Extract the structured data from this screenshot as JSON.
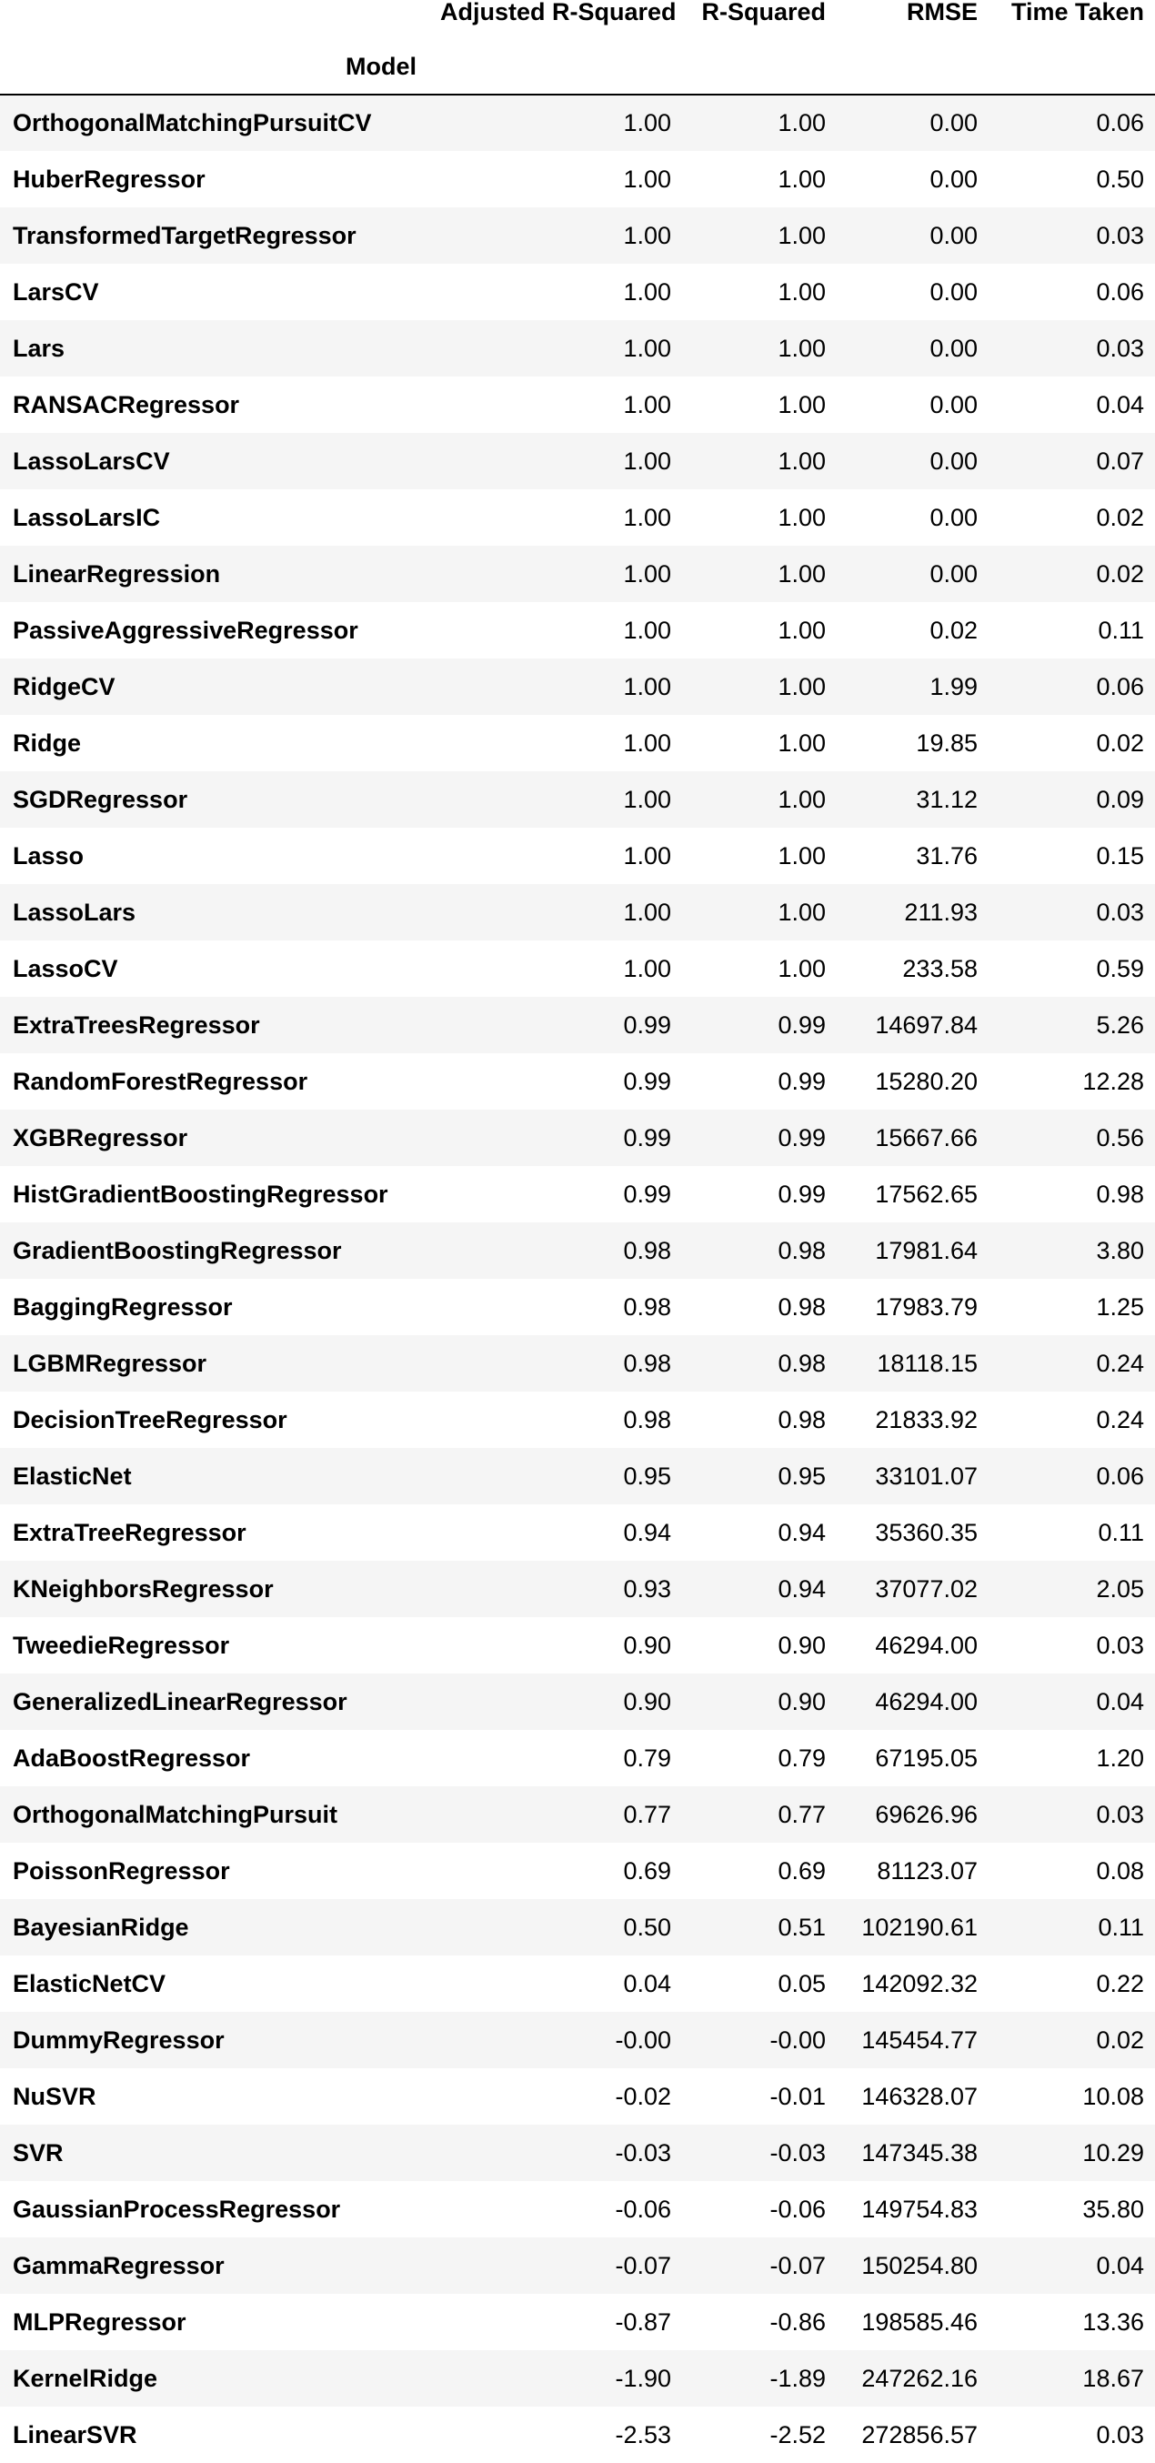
{
  "table": {
    "columns": [
      "Adjusted R-Squared",
      "R-Squared",
      "RMSE",
      "Time Taken"
    ],
    "index_name": "Model",
    "rows": [
      {
        "model": "OrthogonalMatchingPursuitCV",
        "adj_r2": "1.00",
        "r2": "1.00",
        "rmse": "0.00",
        "time": "0.06"
      },
      {
        "model": "HuberRegressor",
        "adj_r2": "1.00",
        "r2": "1.00",
        "rmse": "0.00",
        "time": "0.50"
      },
      {
        "model": "TransformedTargetRegressor",
        "adj_r2": "1.00",
        "r2": "1.00",
        "rmse": "0.00",
        "time": "0.03"
      },
      {
        "model": "LarsCV",
        "adj_r2": "1.00",
        "r2": "1.00",
        "rmse": "0.00",
        "time": "0.06"
      },
      {
        "model": "Lars",
        "adj_r2": "1.00",
        "r2": "1.00",
        "rmse": "0.00",
        "time": "0.03"
      },
      {
        "model": "RANSACRegressor",
        "adj_r2": "1.00",
        "r2": "1.00",
        "rmse": "0.00",
        "time": "0.04"
      },
      {
        "model": "LassoLarsCV",
        "adj_r2": "1.00",
        "r2": "1.00",
        "rmse": "0.00",
        "time": "0.07"
      },
      {
        "model": "LassoLarsIC",
        "adj_r2": "1.00",
        "r2": "1.00",
        "rmse": "0.00",
        "time": "0.02"
      },
      {
        "model": "LinearRegression",
        "adj_r2": "1.00",
        "r2": "1.00",
        "rmse": "0.00",
        "time": "0.02"
      },
      {
        "model": "PassiveAggressiveRegressor",
        "adj_r2": "1.00",
        "r2": "1.00",
        "rmse": "0.02",
        "time": "0.11"
      },
      {
        "model": "RidgeCV",
        "adj_r2": "1.00",
        "r2": "1.00",
        "rmse": "1.99",
        "time": "0.06"
      },
      {
        "model": "Ridge",
        "adj_r2": "1.00",
        "r2": "1.00",
        "rmse": "19.85",
        "time": "0.02"
      },
      {
        "model": "SGDRegressor",
        "adj_r2": "1.00",
        "r2": "1.00",
        "rmse": "31.12",
        "time": "0.09"
      },
      {
        "model": "Lasso",
        "adj_r2": "1.00",
        "r2": "1.00",
        "rmse": "31.76",
        "time": "0.15"
      },
      {
        "model": "LassoLars",
        "adj_r2": "1.00",
        "r2": "1.00",
        "rmse": "211.93",
        "time": "0.03"
      },
      {
        "model": "LassoCV",
        "adj_r2": "1.00",
        "r2": "1.00",
        "rmse": "233.58",
        "time": "0.59"
      },
      {
        "model": "ExtraTreesRegressor",
        "adj_r2": "0.99",
        "r2": "0.99",
        "rmse": "14697.84",
        "time": "5.26"
      },
      {
        "model": "RandomForestRegressor",
        "adj_r2": "0.99",
        "r2": "0.99",
        "rmse": "15280.20",
        "time": "12.28"
      },
      {
        "model": "XGBRegressor",
        "adj_r2": "0.99",
        "r2": "0.99",
        "rmse": "15667.66",
        "time": "0.56"
      },
      {
        "model": "HistGradientBoostingRegressor",
        "adj_r2": "0.99",
        "r2": "0.99",
        "rmse": "17562.65",
        "time": "0.98"
      },
      {
        "model": "GradientBoostingRegressor",
        "adj_r2": "0.98",
        "r2": "0.98",
        "rmse": "17981.64",
        "time": "3.80"
      },
      {
        "model": "BaggingRegressor",
        "adj_r2": "0.98",
        "r2": "0.98",
        "rmse": "17983.79",
        "time": "1.25"
      },
      {
        "model": "LGBMRegressor",
        "adj_r2": "0.98",
        "r2": "0.98",
        "rmse": "18118.15",
        "time": "0.24"
      },
      {
        "model": "DecisionTreeRegressor",
        "adj_r2": "0.98",
        "r2": "0.98",
        "rmse": "21833.92",
        "time": "0.24"
      },
      {
        "model": "ElasticNet",
        "adj_r2": "0.95",
        "r2": "0.95",
        "rmse": "33101.07",
        "time": "0.06"
      },
      {
        "model": "ExtraTreeRegressor",
        "adj_r2": "0.94",
        "r2": "0.94",
        "rmse": "35360.35",
        "time": "0.11"
      },
      {
        "model": "KNeighborsRegressor",
        "adj_r2": "0.93",
        "r2": "0.94",
        "rmse": "37077.02",
        "time": "2.05"
      },
      {
        "model": "TweedieRegressor",
        "adj_r2": "0.90",
        "r2": "0.90",
        "rmse": "46294.00",
        "time": "0.03"
      },
      {
        "model": "GeneralizedLinearRegressor",
        "adj_r2": "0.90",
        "r2": "0.90",
        "rmse": "46294.00",
        "time": "0.04"
      },
      {
        "model": "AdaBoostRegressor",
        "adj_r2": "0.79",
        "r2": "0.79",
        "rmse": "67195.05",
        "time": "1.20"
      },
      {
        "model": "OrthogonalMatchingPursuit",
        "adj_r2": "0.77",
        "r2": "0.77",
        "rmse": "69626.96",
        "time": "0.03"
      },
      {
        "model": "PoissonRegressor",
        "adj_r2": "0.69",
        "r2": "0.69",
        "rmse": "81123.07",
        "time": "0.08"
      },
      {
        "model": "BayesianRidge",
        "adj_r2": "0.50",
        "r2": "0.51",
        "rmse": "102190.61",
        "time": "0.11"
      },
      {
        "model": "ElasticNetCV",
        "adj_r2": "0.04",
        "r2": "0.05",
        "rmse": "142092.32",
        "time": "0.22"
      },
      {
        "model": "DummyRegressor",
        "adj_r2": "-0.00",
        "r2": "-0.00",
        "rmse": "145454.77",
        "time": "0.02"
      },
      {
        "model": "NuSVR",
        "adj_r2": "-0.02",
        "r2": "-0.01",
        "rmse": "146328.07",
        "time": "10.08"
      },
      {
        "model": "SVR",
        "adj_r2": "-0.03",
        "r2": "-0.03",
        "rmse": "147345.38",
        "time": "10.29"
      },
      {
        "model": "GaussianProcessRegressor",
        "adj_r2": "-0.06",
        "r2": "-0.06",
        "rmse": "149754.83",
        "time": "35.80"
      },
      {
        "model": "GammaRegressor",
        "adj_r2": "-0.07",
        "r2": "-0.07",
        "rmse": "150254.80",
        "time": "0.04"
      },
      {
        "model": "MLPRegressor",
        "adj_r2": "-0.87",
        "r2": "-0.86",
        "rmse": "198585.46",
        "time": "13.36"
      },
      {
        "model": "KernelRidge",
        "adj_r2": "-1.90",
        "r2": "-1.89",
        "rmse": "247262.16",
        "time": "18.67"
      },
      {
        "model": "LinearSVR",
        "adj_r2": "-2.53",
        "r2": "-2.52",
        "rmse": "272856.57",
        "time": "0.03"
      }
    ]
  }
}
